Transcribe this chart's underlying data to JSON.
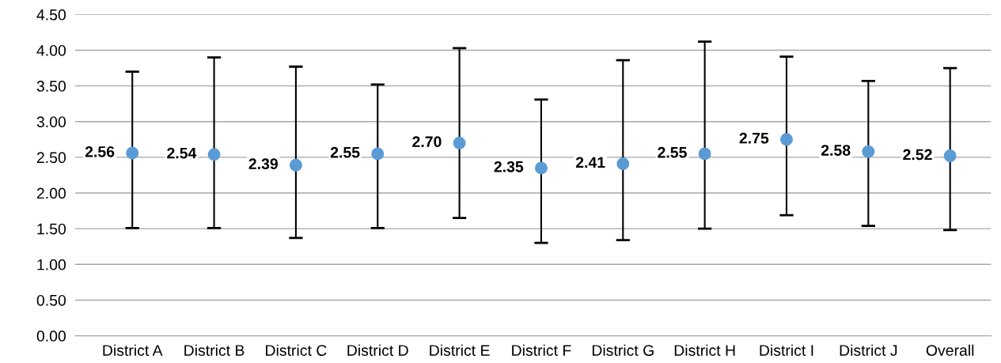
{
  "chart_data": {
    "type": "scatter",
    "categories": [
      "District A",
      "District B",
      "District C",
      "District D",
      "District E",
      "District F",
      "District G",
      "District H",
      "District I",
      "District J",
      "Overall"
    ],
    "series": [
      {
        "color": "#5b9bd5",
        "values": [
          2.56,
          2.54,
          2.39,
          2.55,
          2.7,
          2.35,
          2.41,
          2.55,
          2.75,
          2.58,
          2.52
        ],
        "value_labels": [
          "2.56",
          "2.54",
          "2.39",
          "2.55",
          "2.70",
          "2.35",
          "2.41",
          "2.55",
          "2.75",
          "2.58",
          "2.52"
        ],
        "errors": [
          [
            1.51,
            3.7
          ],
          [
            1.51,
            3.9
          ],
          [
            1.37,
            3.77
          ],
          [
            1.51,
            3.52
          ],
          [
            1.65,
            4.03
          ],
          [
            1.3,
            3.31
          ],
          [
            1.34,
            3.86
          ],
          [
            1.5,
            4.12
          ],
          [
            1.69,
            3.91
          ],
          [
            1.54,
            3.57
          ],
          [
            1.48,
            3.75
          ]
        ]
      }
    ],
    "ylim": [
      0,
      4.5
    ],
    "yticks": [
      {
        "value": 0,
        "label": "0.00"
      },
      {
        "value": 0.5,
        "label": "0.50"
      },
      {
        "value": 1,
        "label": "1.00"
      },
      {
        "value": 1.5,
        "label": "1.50"
      },
      {
        "value": 2,
        "label": "2.00"
      },
      {
        "value": 2.5,
        "label": "2.50"
      },
      {
        "value": 3,
        "label": "3.00"
      },
      {
        "value": 3.5,
        "label": "3.50"
      },
      {
        "value": 4,
        "label": "4.00"
      },
      {
        "value": 4.5,
        "label": "4.50"
      }
    ],
    "grid": "y",
    "marker": "circle",
    "legend": false
  }
}
